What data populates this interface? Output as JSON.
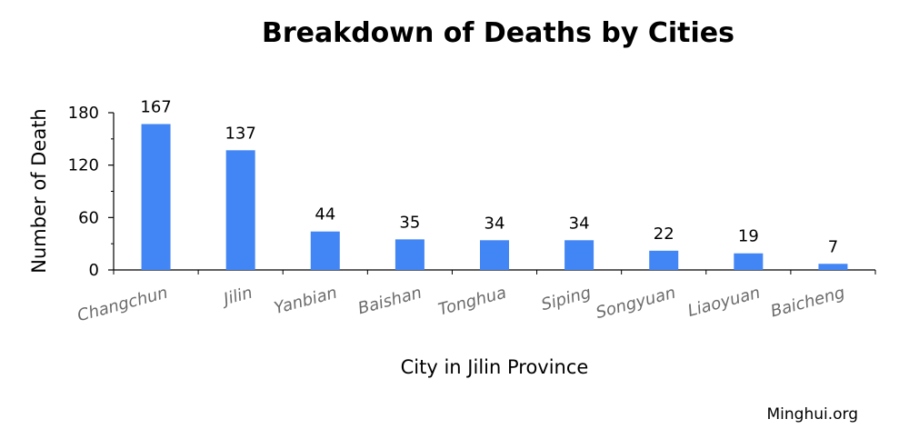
{
  "chart_data": {
    "type": "bar",
    "title": "Breakdown of Deaths by Cities",
    "xlabel": "City in Jilin Province",
    "ylabel": "Number of Death",
    "categories": [
      "Changchun",
      "Jilin",
      "Yanbian",
      "Baishan",
      "Tonghua",
      "Siping",
      "Songyuan",
      "Liaoyuan",
      "Baicheng"
    ],
    "values": [
      167,
      137,
      44,
      35,
      34,
      34,
      22,
      19,
      7
    ],
    "ylim": [
      0,
      180
    ],
    "yticks": [
      0,
      60,
      120,
      180
    ],
    "grid": false,
    "bar_color": "#4285f4",
    "data_labels": true
  },
  "credit": "Minghui.org"
}
